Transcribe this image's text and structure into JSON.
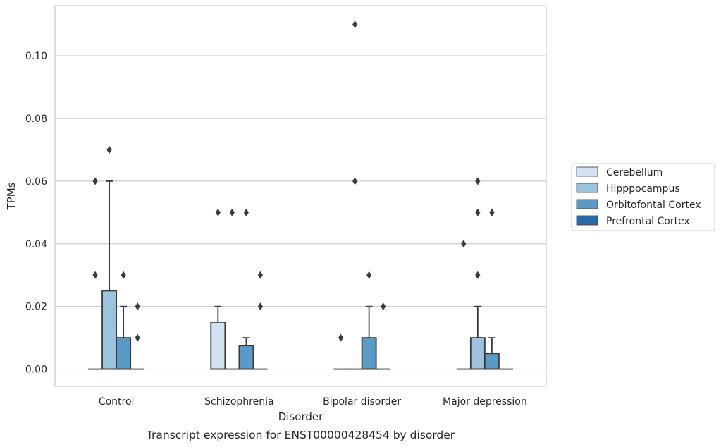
{
  "chart_data": {
    "type": "boxplot",
    "title": "",
    "caption": "Transcript expression for ENST00000428454 by disorder",
    "xlabel": "Disorder",
    "ylabel": "TPMs",
    "ylim": [
      -0.0055,
      0.116
    ],
    "yticks": [
      0.0,
      0.02,
      0.04,
      0.06,
      0.08,
      0.1
    ],
    "ytick_labels": [
      "0.00",
      "0.02",
      "0.04",
      "0.06",
      "0.08",
      "0.10"
    ],
    "grid": "horizontal",
    "legend_position": "right",
    "categories": [
      "Control",
      "Schizophrenia",
      "Bipolar disorder",
      "Major depression"
    ],
    "series": [
      {
        "name": "Cerebellum",
        "color": "#d3e2f1",
        "boxes": [
          {
            "q1": 0,
            "median": 0,
            "q3": 0,
            "whislo": 0,
            "whishi": 0,
            "fliers": [
              0.03,
              0.06
            ]
          },
          {
            "q1": 0,
            "median": 0,
            "q3": 0.015,
            "whislo": 0,
            "whishi": 0.02,
            "fliers": [
              0.05
            ]
          },
          {
            "q1": 0,
            "median": 0,
            "q3": 0,
            "whislo": 0,
            "whishi": 0,
            "fliers": [
              0.01
            ]
          },
          {
            "q1": 0,
            "median": 0,
            "q3": 0,
            "whislo": 0,
            "whishi": 0,
            "fliers": [
              0.04
            ]
          }
        ]
      },
      {
        "name": "Hipppocampus",
        "color": "#9cc2dc",
        "boxes": [
          {
            "q1": 0,
            "median": 0,
            "q3": 0.025,
            "whislo": 0,
            "whishi": 0.06,
            "fliers": [
              0.07
            ]
          },
          {
            "q1": 0,
            "median": 0,
            "q3": 0,
            "whislo": 0,
            "whishi": 0,
            "fliers": [
              0.05
            ]
          },
          {
            "q1": 0,
            "median": 0,
            "q3": 0,
            "whislo": 0,
            "whishi": 0,
            "fliers": [
              0.06,
              0.11
            ]
          },
          {
            "q1": 0,
            "median": 0,
            "q3": 0.01,
            "whislo": 0,
            "whishi": 0.02,
            "fliers": [
              0.03,
              0.05,
              0.06
            ]
          }
        ]
      },
      {
        "name": "Orbitofontal Cortex",
        "color": "#5b99c6",
        "boxes": [
          {
            "q1": 0,
            "median": 0,
            "q3": 0.01,
            "whislo": 0,
            "whishi": 0.02,
            "fliers": [
              0.03
            ]
          },
          {
            "q1": 0,
            "median": 0,
            "q3": 0.0075,
            "whislo": 0,
            "whishi": 0.01,
            "fliers": [
              0.05
            ]
          },
          {
            "q1": 0,
            "median": 0,
            "q3": 0.01,
            "whislo": 0,
            "whishi": 0.02,
            "fliers": [
              0.03
            ]
          },
          {
            "q1": 0,
            "median": 0,
            "q3": 0.005,
            "whislo": 0,
            "whishi": 0.01,
            "fliers": [
              0.05
            ]
          }
        ]
      },
      {
        "name": "Prefrontal Cortex",
        "color": "#2c6aa6",
        "boxes": [
          {
            "q1": 0,
            "median": 0,
            "q3": 0,
            "whislo": 0,
            "whishi": 0,
            "fliers": [
              0.01,
              0.02
            ]
          },
          {
            "q1": 0,
            "median": 0,
            "q3": 0,
            "whislo": 0,
            "whishi": 0,
            "fliers": [
              0.02,
              0.03
            ]
          },
          {
            "q1": 0,
            "median": 0,
            "q3": 0,
            "whislo": 0,
            "whishi": 0,
            "fliers": [
              0.02
            ]
          },
          {
            "q1": 0,
            "median": 0,
            "q3": 0,
            "whislo": 0,
            "whishi": 0,
            "fliers": []
          }
        ]
      }
    ]
  },
  "colors": {
    "edge": "#3b3b3b",
    "grid": "#cccccc",
    "spine": "#cccccc"
  }
}
